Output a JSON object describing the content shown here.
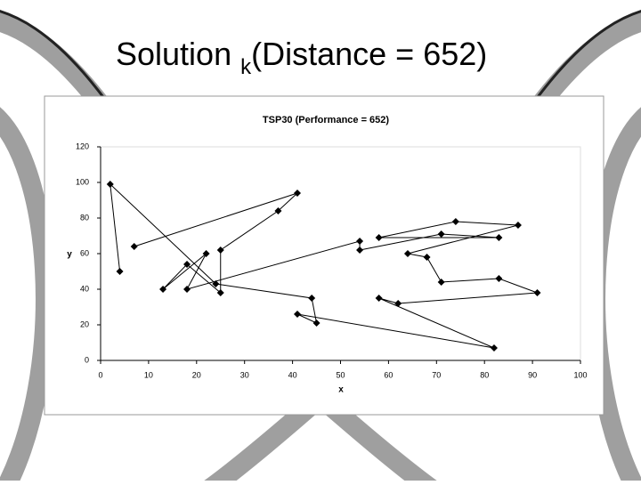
{
  "slide_title": {
    "main": "Solution ",
    "subscript": "k",
    "suffix": "(Distance = 652)"
  },
  "chart_data": {
    "type": "line",
    "title": "TSP30 (Performance  = 652)",
    "x_label": "x",
    "y_label": "y",
    "x": [
      4,
      2,
      24,
      44,
      45,
      41,
      82,
      58,
      62,
      91,
      83,
      71,
      68,
      64,
      87,
      74,
      58,
      83,
      71,
      54,
      54,
      18,
      22,
      13,
      18,
      25,
      25,
      37,
      41,
      7
    ],
    "series": [
      {
        "color": "#000000",
        "values": [
          50,
          99,
          43,
          35,
          21,
          26,
          7,
          35,
          32,
          38,
          46,
          44,
          58,
          60,
          76,
          78,
          69,
          69,
          71,
          62,
          67,
          40,
          60,
          40,
          54,
          38,
          62,
          84,
          94,
          64
        ]
      }
    ],
    "xlim": [
      0,
      100
    ],
    "xticks": [
      0,
      10,
      20,
      30,
      40,
      50,
      60,
      70,
      80,
      90,
      100
    ],
    "ylim": [
      0,
      120
    ],
    "yticks": [
      0,
      20,
      40,
      60,
      80,
      100,
      120
    ],
    "grid": false
  }
}
